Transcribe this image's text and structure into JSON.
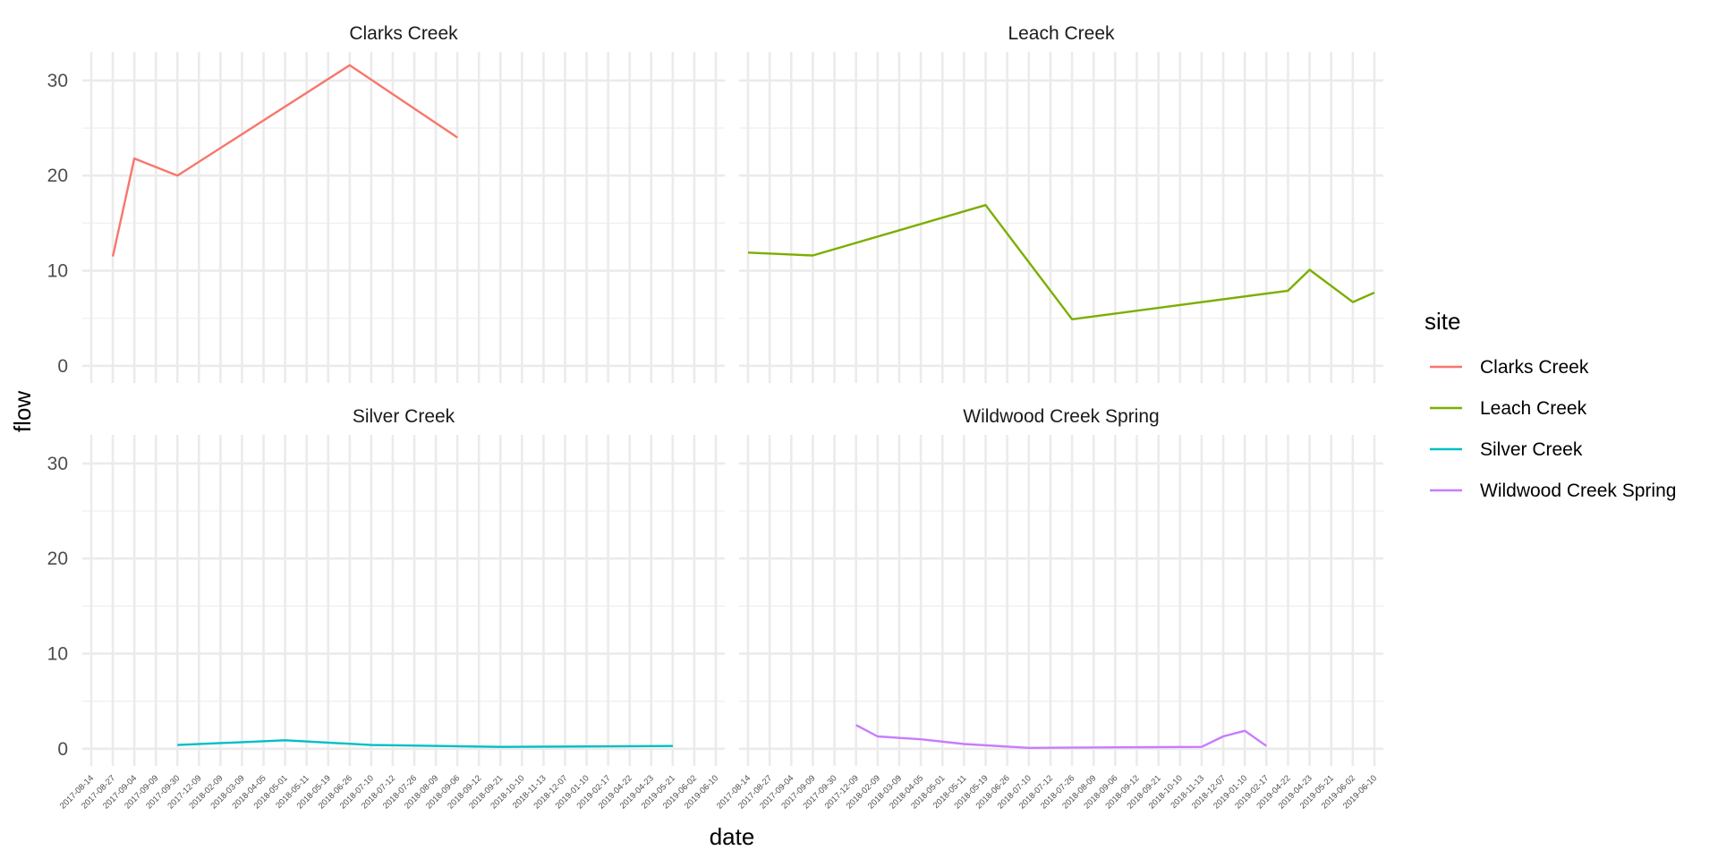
{
  "chart_data": {
    "type": "line",
    "title": "",
    "xlabel": "date",
    "ylabel": "flow",
    "ylim": [
      -1.8,
      33
    ],
    "y_ticks": [
      0,
      10,
      20,
      30
    ],
    "grid": true,
    "facets": "2x2",
    "x_ticks": [
      "2017-08-14",
      "2017-08-27",
      "2017-09-04",
      "2017-09-09",
      "2017-09-30",
      "2017-12-09",
      "2018-02-09",
      "2018-03-09",
      "2018-04-05",
      "2018-05-01",
      "2018-05-11",
      "2018-05-19",
      "2018-06-26",
      "2018-07-10",
      "2018-07-12",
      "2018-07-26",
      "2018-08-09",
      "2018-09-06",
      "2018-09-12",
      "2018-09-21",
      "2018-10-10",
      "2018-11-13",
      "2018-12-07",
      "2019-01-10",
      "2019-02-17",
      "2019-04-22",
      "2019-04-23",
      "2019-05-21",
      "2019-06-02",
      "2019-06-10"
    ],
    "legend": {
      "title": "site",
      "position": "right"
    },
    "series": [
      {
        "name": "Clarks Creek",
        "color": "#F8766D",
        "points": [
          [
            "2017-08-27",
            11.5
          ],
          [
            "2017-09-04",
            21.8
          ],
          [
            "2017-09-30",
            20.0
          ],
          [
            "2018-06-26",
            31.6
          ],
          [
            "2018-09-06",
            24.0
          ]
        ]
      },
      {
        "name": "Leach Creek",
        "color": "#7CAE00",
        "points": [
          [
            "2017-08-14",
            11.9
          ],
          [
            "2017-09-09",
            11.6
          ],
          [
            "2018-05-19",
            16.9
          ],
          [
            "2018-07-26",
            4.9
          ],
          [
            "2019-04-22",
            7.9
          ],
          [
            "2019-04-23",
            10.1
          ],
          [
            "2019-06-02",
            6.7
          ],
          [
            "2019-06-10",
            7.7
          ]
        ]
      },
      {
        "name": "Silver Creek",
        "color": "#00BFC4",
        "points": [
          [
            "2017-09-30",
            0.4
          ],
          [
            "2018-05-01",
            0.9
          ],
          [
            "2018-07-10",
            0.4
          ],
          [
            "2018-09-21",
            0.2
          ],
          [
            "2019-05-21",
            0.3
          ]
        ]
      },
      {
        "name": "Wildwood Creek Spring",
        "color": "#C77CFF",
        "points": [
          [
            "2017-12-09",
            2.5
          ],
          [
            "2018-02-09",
            1.3
          ],
          [
            "2018-04-05",
            1.0
          ],
          [
            "2018-05-11",
            0.5
          ],
          [
            "2018-07-10",
            0.1
          ],
          [
            "2018-11-13",
            0.2
          ],
          [
            "2018-12-07",
            1.3
          ],
          [
            "2019-01-10",
            1.9
          ],
          [
            "2019-02-17",
            0.3
          ]
        ]
      }
    ]
  }
}
